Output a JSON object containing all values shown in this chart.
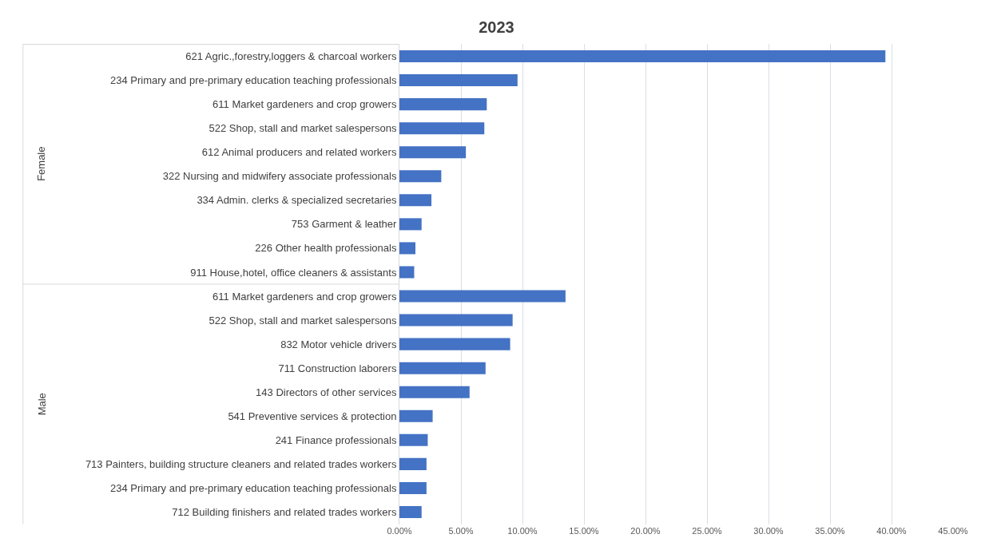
{
  "chart_data": {
    "type": "bar",
    "orientation": "horizontal",
    "title": "2023",
    "categories": [
      "621 Agric.,forestry,loggers & charcoal workers",
      "234 Primary and pre-primary education teaching professionals",
      "611 Market gardeners and crop growers",
      "522 Shop, stall and market salespersons",
      "612 Animal producers and related workers",
      "322 Nursing and midwifery associate professionals",
      "334 Admin. clerks & specialized secretaries",
      "753 Garment & leather",
      "226 Other health professionals",
      "911 House,hotel, office cleaners & assistants",
      "611 Market gardeners and crop growers",
      "522 Shop, stall and market salespersons",
      "832 Motor vehicle drivers",
      "711 Construction laborers",
      "143 Directors of other services",
      "541 Preventive services & protection",
      "241 Finance professionals",
      "713 Painters, building structure cleaners and related trades workers",
      "234 Primary and pre-primary education teaching professionals",
      "712 Building finishers and related trades workers"
    ],
    "values": [
      39.5,
      9.6,
      7.1,
      6.9,
      5.4,
      3.4,
      2.6,
      1.8,
      1.3,
      1.2,
      13.5,
      9.2,
      9.0,
      7.0,
      5.7,
      2.7,
      2.3,
      2.2,
      2.2,
      1.8
    ],
    "color": "#4472c4",
    "xlim": [
      0,
      45
    ],
    "xticks": [
      {
        "value": 0,
        "label": "0.00%"
      },
      {
        "value": 5,
        "label": "5.00%"
      },
      {
        "value": 10,
        "label": "10.00%"
      },
      {
        "value": 15,
        "label": "15.00%"
      },
      {
        "value": 20,
        "label": "20.00%"
      },
      {
        "value": 25,
        "label": "25.00%"
      },
      {
        "value": 30,
        "label": "30.00%"
      },
      {
        "value": 35,
        "label": "35.00%"
      },
      {
        "value": 40,
        "label": "40.00%"
      },
      {
        "value": 45,
        "label": "45.00%"
      }
    ],
    "annotations": [
      "Female",
      "Male"
    ],
    "grid": "x",
    "legend": false
  }
}
